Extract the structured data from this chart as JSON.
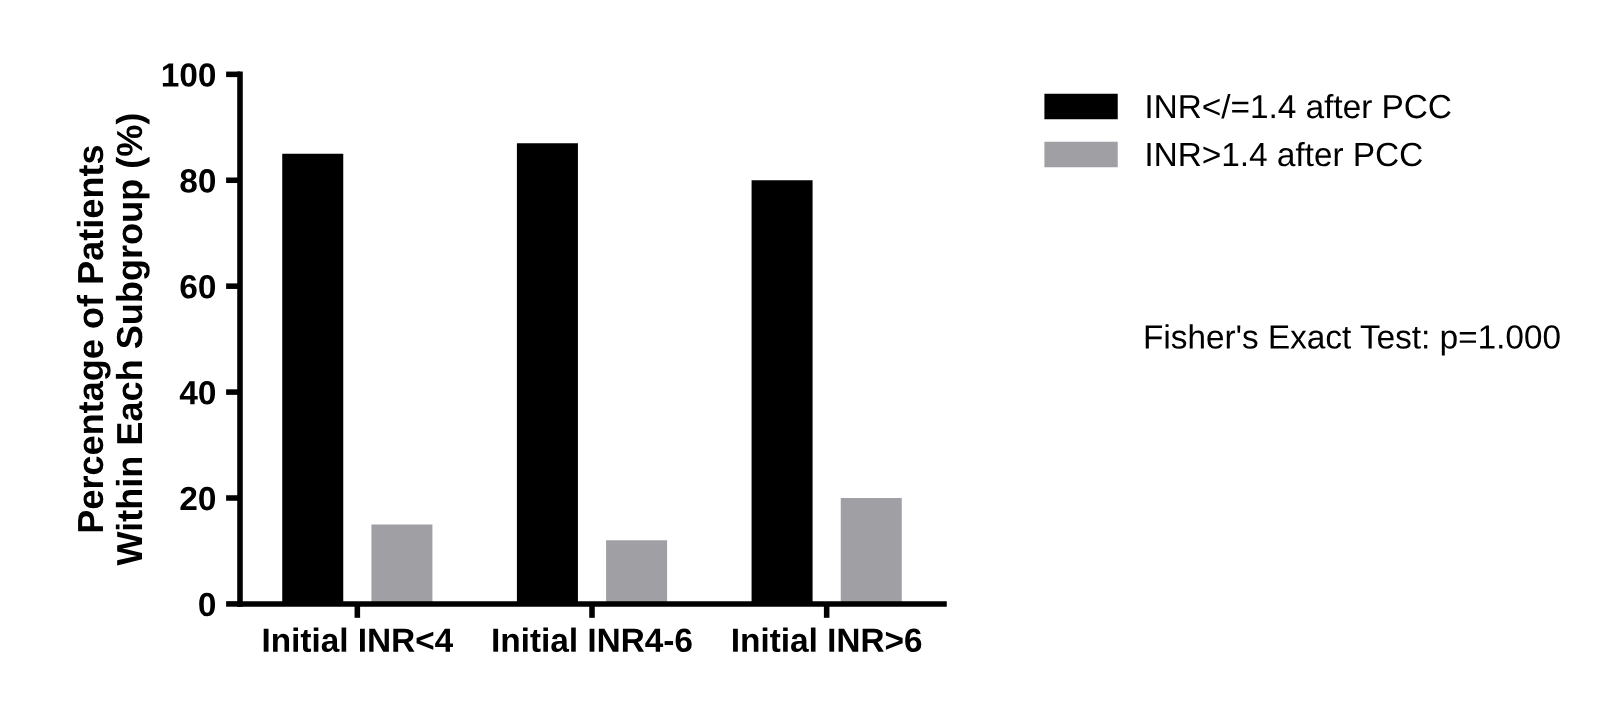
{
  "chart_data": {
    "type": "bar",
    "ylabel": "Percentage of Patients\nWithin Each Subgroup (%)",
    "categories": [
      "Initial INR<4",
      "Initial INR4-6",
      "Initial INR>6"
    ],
    "series": [
      {
        "name": "INR</=1.4 after PCC",
        "color": "#000000",
        "values": [
          85,
          87,
          80
        ]
      },
      {
        "name": "INR>1.4 after PCC",
        "color": "#a0a0a4",
        "values": [
          15,
          12,
          20
        ]
      }
    ],
    "ylim": [
      0,
      100
    ],
    "yticks": [
      0,
      20,
      40,
      60,
      80,
      100
    ],
    "grid": false,
    "legend": "top right",
    "annotations": [
      "Fisher's Exact Test: p=1.000"
    ]
  }
}
